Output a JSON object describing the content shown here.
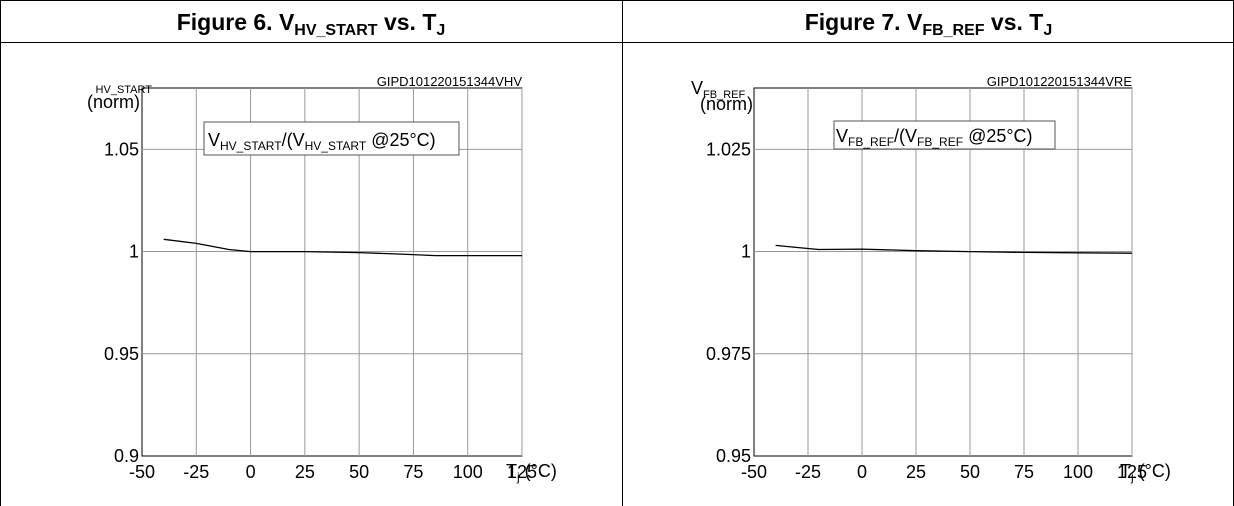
{
  "chart_data": [
    {
      "type": "line",
      "title": {
        "prefix": "Figure 6. V",
        "sub": "HV_START",
        "mid": " vs. T",
        "sub2": "J"
      },
      "code": "GIPD101220151344VHV",
      "ylabel_top": "HV_START",
      "ylabel_bottom": "(norm)",
      "legend": {
        "a": "V",
        "a_sub": "HV_START",
        "b": "/(V",
        "b_sub": "HV_START",
        "c": " @25°C)"
      },
      "xlabel": {
        "main": "T",
        "sub": "j",
        "unit": " (°C)"
      },
      "xlim": [
        -50,
        125
      ],
      "ylim": [
        0.9,
        1.08
      ],
      "x_ticks": [
        -50,
        -25,
        0,
        25,
        50,
        75,
        100,
        125
      ],
      "x_tick_labels": [
        "-50",
        "-25",
        "0",
        "25",
        "50",
        "75",
        "100",
        "125"
      ],
      "y_ticks": [
        0.9,
        0.95,
        1,
        1.05
      ],
      "y_tick_labels": [
        "0.9",
        "0.95",
        "1",
        "1.05"
      ],
      "grid": true,
      "series": [
        {
          "x": [
            -40,
            -25,
            -10,
            0,
            10,
            25,
            50,
            75,
            85,
            100,
            125
          ],
          "y": [
            1.006,
            1.004,
            1.001,
            1.0,
            1.0,
            1.0,
            0.9995,
            0.9985,
            0.998,
            0.998,
            0.998
          ]
        }
      ]
    },
    {
      "type": "line",
      "title": {
        "prefix": "Figure 7. V",
        "sub": "FB_REF",
        "mid": " vs. T",
        "sub2": "J"
      },
      "code": "GIPD101220151344VRE",
      "ylabel_top_main": "V",
      "ylabel_top_sub": "FB_REF",
      "ylabel_bottom": "(norm)",
      "legend": {
        "a": "V",
        "a_sub": "FB_REF",
        "b": "/(V",
        "b_sub": "FB_REF",
        "c": " @25°C)"
      },
      "xlabel": {
        "main": "T",
        "sub": "j",
        "unit": " (°C)"
      },
      "xlim": [
        -50,
        125
      ],
      "ylim": [
        0.95,
        1.04
      ],
      "x_ticks": [
        -50,
        -25,
        0,
        25,
        50,
        75,
        100,
        125
      ],
      "x_tick_labels": [
        "-50",
        "-25",
        "0",
        "25",
        "50",
        "75",
        "100",
        "125"
      ],
      "y_ticks": [
        0.95,
        0.975,
        1,
        1.025
      ],
      "y_tick_labels": [
        "0.95",
        "0.975",
        "1",
        "1.025"
      ],
      "grid": true,
      "series": [
        {
          "x": [
            -40,
            -30,
            -20,
            0,
            25,
            50,
            75,
            100,
            125
          ],
          "y": [
            1.0015,
            1.001,
            1.0005,
            1.0006,
            1.0002,
            1.0,
            0.9998,
            0.9997,
            0.9996
          ]
        }
      ]
    }
  ]
}
